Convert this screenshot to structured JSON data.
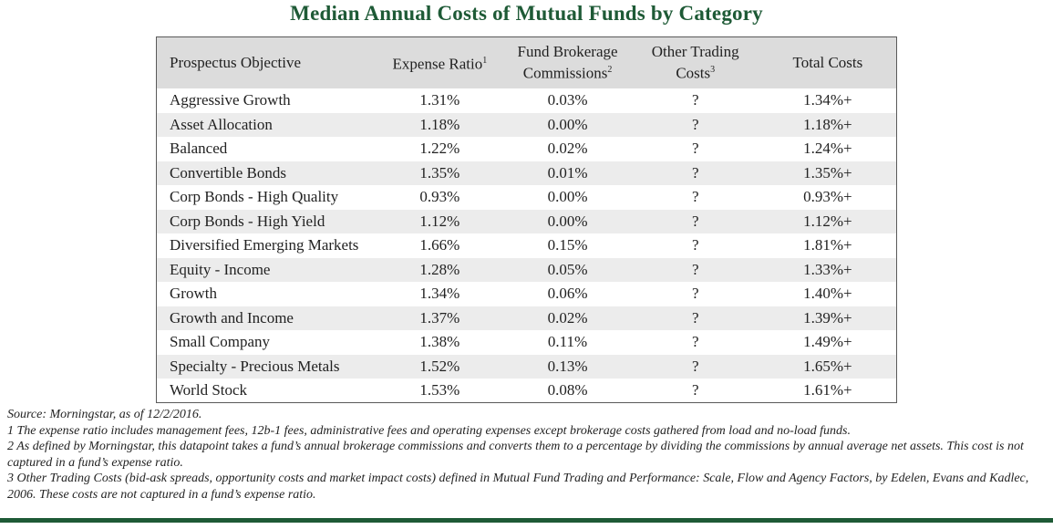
{
  "chart_data": {
    "type": "table",
    "title": "Median Annual Costs of Mutual Funds by Category",
    "columns": [
      {
        "label": "Prospectus Objective",
        "line2": "",
        "sup": ""
      },
      {
        "label": "Expense Ratio",
        "line2": "",
        "sup": "1"
      },
      {
        "label": "Fund Brokerage",
        "line2": "Commissions",
        "sup": "2"
      },
      {
        "label": "Other Trading",
        "line2": "Costs",
        "sup": "3"
      },
      {
        "label": "Total Costs",
        "line2": "",
        "sup": ""
      }
    ],
    "rows": [
      [
        "Aggressive Growth",
        "1.31%",
        "0.03%",
        "?",
        "1.34%+"
      ],
      [
        "Asset Allocation",
        "1.18%",
        "0.00%",
        "?",
        "1.18%+"
      ],
      [
        "Balanced",
        "1.22%",
        "0.02%",
        "?",
        "1.24%+"
      ],
      [
        "Convertible Bonds",
        "1.35%",
        "0.01%",
        "?",
        "1.35%+"
      ],
      [
        "Corp Bonds - High Quality",
        "0.93%",
        "0.00%",
        "?",
        "0.93%+"
      ],
      [
        "Corp Bonds - High Yield",
        "1.12%",
        "0.00%",
        "?",
        "1.12%+"
      ],
      [
        "Diversified Emerging Markets",
        "1.66%",
        "0.15%",
        "?",
        "1.81%+"
      ],
      [
        "Equity - Income",
        "1.28%",
        "0.05%",
        "?",
        "1.33%+"
      ],
      [
        "Growth",
        "1.34%",
        "0.06%",
        "?",
        "1.40%+"
      ],
      [
        "Growth and Income",
        "1.37%",
        "0.02%",
        "?",
        "1.39%+"
      ],
      [
        "Small Company",
        "1.38%",
        "0.11%",
        "?",
        "1.49%+"
      ],
      [
        "Specialty - Precious Metals",
        "1.52%",
        "0.13%",
        "?",
        "1.65%+"
      ],
      [
        "World Stock",
        "1.53%",
        "0.08%",
        "?",
        "1.61%+"
      ]
    ]
  },
  "notes": [
    "Source: Morningstar, as of 12/2/2016.",
    "1 The expense ratio includes management fees, 12b-1 fees, administrative fees and operating expenses except brokerage costs gathered from load and no-load funds.",
    "2 As defined by Morningstar, this datapoint takes a fund’s annual brokerage commissions and converts them to a percentage by dividing the commissions by annual average net assets. This cost is not captured in a fund’s expense ratio.",
    "3 Other Trading Costs (bid-ask spreads, opportunity costs and market impact costs) defined in Mutual Fund Trading and Performance: Scale, Flow and Agency Factors, by Edelen, Evans and Kadlec, 2006. These costs are not captured in a fund’s expense ratio."
  ],
  "colors": {
    "brand_green": "#1e5a36",
    "header_gray": "#dcdcdc",
    "stripe_gray": "#ececec"
  }
}
